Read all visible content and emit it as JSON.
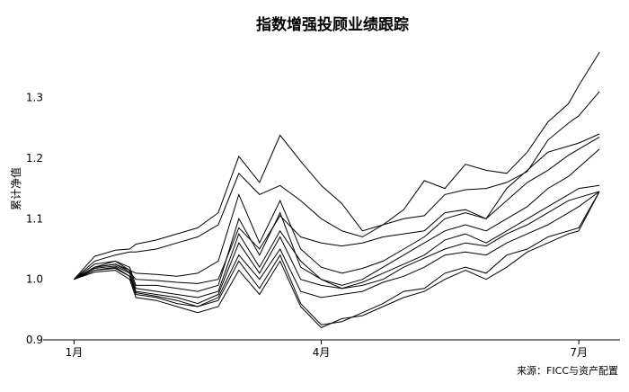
{
  "chart_data": {
    "type": "line",
    "title": "指数增强投顾业绩跟踪",
    "ylabel": "累计净值",
    "xlabel": "",
    "source": "来源：FICC与资产配置",
    "x_tick_labels": [
      "1月",
      "4月",
      "7月"
    ],
    "x_tick_positions": [
      0,
      12,
      24.5
    ],
    "y_ticks": [
      "0.9",
      "1.0",
      "1.1",
      "1.2",
      "1.3"
    ],
    "ylim": [
      0.9,
      1.39
    ],
    "xlim": [
      -1.5,
      26.5
    ],
    "grid": false,
    "x": [
      0,
      1,
      2,
      2.7,
      3,
      4,
      5,
      6,
      7,
      8,
      9,
      10,
      11,
      12,
      13,
      14,
      15,
      16,
      17,
      18,
      19,
      20,
      21,
      22,
      23,
      24,
      24.5,
      25.5
    ],
    "series": [
      {
        "values": [
          1.0,
          1.038,
          1.048,
          1.05,
          1.058,
          1.065,
          1.075,
          1.085,
          1.11,
          1.203,
          1.16,
          1.238,
          1.195,
          1.155,
          1.125,
          1.08,
          1.09,
          1.115,
          1.163,
          1.15,
          1.19,
          1.18,
          1.175,
          1.21,
          1.26,
          1.29,
          1.32,
          1.375
        ]
      },
      {
        "values": [
          1.0,
          1.03,
          1.04,
          1.045,
          1.045,
          1.05,
          1.06,
          1.07,
          1.09,
          1.175,
          1.14,
          1.155,
          1.13,
          1.1,
          1.08,
          1.07,
          1.09,
          1.1,
          1.105,
          1.14,
          1.148,
          1.15,
          1.16,
          1.178,
          1.23,
          1.258,
          1.27,
          1.31
        ]
      },
      {
        "values": [
          1.0,
          1.025,
          1.03,
          1.015,
          1.01,
          1.008,
          1.005,
          1.01,
          1.03,
          1.14,
          1.06,
          1.13,
          1.05,
          1.02,
          1.01,
          1.018,
          1.03,
          1.05,
          1.07,
          1.1,
          1.11,
          1.1,
          1.15,
          1.18,
          1.21,
          1.22,
          1.225,
          1.24
        ]
      },
      {
        "values": [
          1.0,
          1.02,
          1.025,
          1.012,
          1.0,
          0.998,
          0.995,
          0.993,
          1.0,
          1.085,
          1.05,
          1.105,
          1.07,
          1.06,
          1.055,
          1.06,
          1.07,
          1.075,
          1.08,
          1.11,
          1.115,
          1.1,
          1.13,
          1.16,
          1.18,
          1.205,
          1.215,
          1.235
        ]
      },
      {
        "values": [
          1.0,
          1.02,
          1.03,
          1.02,
          0.99,
          0.99,
          0.985,
          0.98,
          0.99,
          1.1,
          1.04,
          1.11,
          1.02,
          1.0,
          0.99,
          1.0,
          1.02,
          1.04,
          1.06,
          1.08,
          1.09,
          1.08,
          1.1,
          1.12,
          1.15,
          1.17,
          1.185,
          1.215
        ]
      },
      {
        "values": [
          1.0,
          1.02,
          1.025,
          1.015,
          0.985,
          0.98,
          0.975,
          0.97,
          0.98,
          1.075,
          1.02,
          1.08,
          1.03,
          1.0,
          0.985,
          0.995,
          1.01,
          1.025,
          1.04,
          1.065,
          1.075,
          1.06,
          1.08,
          1.1,
          1.12,
          1.14,
          1.15,
          1.155
        ]
      },
      {
        "values": [
          1.0,
          1.018,
          1.022,
          1.01,
          0.98,
          0.975,
          0.97,
          0.96,
          0.975,
          1.06,
          1.01,
          1.07,
          1.0,
          0.99,
          0.985,
          0.99,
          1.0,
          1.02,
          1.035,
          1.05,
          1.06,
          1.055,
          1.075,
          1.09,
          1.11,
          1.13,
          1.135,
          1.145
        ]
      },
      {
        "values": [
          1.0,
          1.015,
          1.018,
          1.005,
          0.975,
          0.97,
          0.96,
          0.955,
          0.97,
          1.04,
          1.0,
          1.05,
          0.98,
          0.97,
          0.975,
          0.98,
          0.995,
          1.005,
          1.02,
          1.04,
          1.045,
          1.04,
          1.06,
          1.075,
          1.09,
          1.11,
          1.12,
          1.145
        ]
      },
      {
        "values": [
          1.0,
          1.015,
          1.02,
          1.005,
          0.978,
          0.972,
          0.965,
          0.955,
          0.965,
          1.03,
          0.985,
          1.04,
          0.96,
          0.925,
          0.93,
          0.945,
          0.96,
          0.98,
          0.985,
          1.01,
          1.02,
          1.01,
          1.04,
          1.05,
          1.07,
          1.08,
          1.085,
          1.145
        ]
      },
      {
        "values": [
          1.0,
          1.012,
          1.015,
          1.0,
          0.97,
          0.965,
          0.955,
          0.945,
          0.955,
          1.015,
          0.975,
          1.03,
          0.955,
          0.92,
          0.935,
          0.94,
          0.955,
          0.97,
          0.98,
          1.0,
          1.015,
          1.0,
          1.02,
          1.045,
          1.06,
          1.075,
          1.08,
          1.145
        ]
      }
    ]
  }
}
